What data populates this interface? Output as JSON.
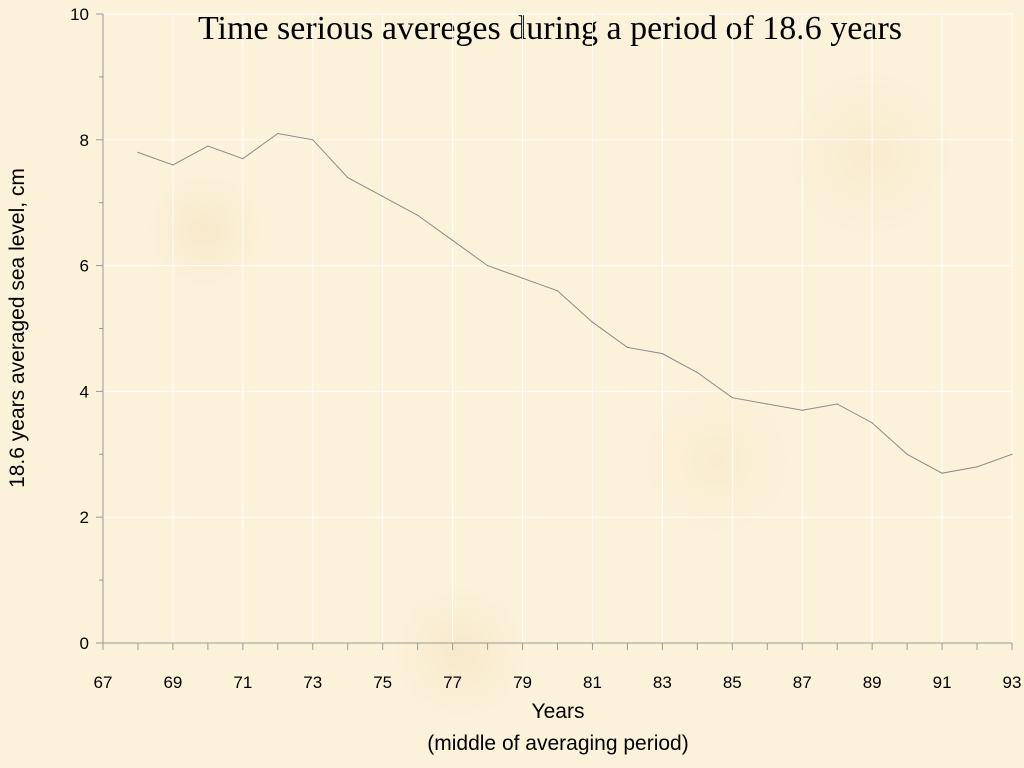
{
  "chart_data": {
    "type": "line",
    "title": "Time serious avereges during a period of 18.6 years",
    "xlabel": "Years",
    "xlabel_sub": "(middle of  averaging period)",
    "ylabel": "18.6 years averaged sea level, cm",
    "xlim": [
      67,
      93
    ],
    "ylim": [
      0,
      10
    ],
    "x_ticks": [
      "67",
      "69",
      "71",
      "73",
      "75",
      "77",
      "79",
      "81",
      "83",
      "85",
      "87",
      "89",
      "91",
      "93"
    ],
    "y_ticks": [
      "0",
      "2",
      "4",
      "6",
      "8",
      "10"
    ],
    "series": [
      {
        "x": [
          68,
          69,
          70,
          71,
          72,
          73,
          74,
          75,
          76,
          77,
          78,
          79,
          80,
          81,
          82,
          83,
          84,
          85,
          86,
          87,
          88,
          89,
          90,
          91,
          92,
          93
        ],
        "values": [
          7.8,
          7.6,
          7.9,
          7.7,
          8.1,
          8.0,
          7.4,
          7.1,
          6.8,
          6.4,
          6.0,
          5.8,
          5.6,
          5.1,
          4.7,
          4.6,
          4.3,
          3.9,
          3.8,
          3.7,
          3.8,
          3.5,
          3.0,
          2.7,
          2.8,
          3.0
        ]
      }
    ],
    "line_color": "#8a8a8a",
    "grid": true,
    "grid_color": "#ffffff",
    "legend": "none"
  }
}
